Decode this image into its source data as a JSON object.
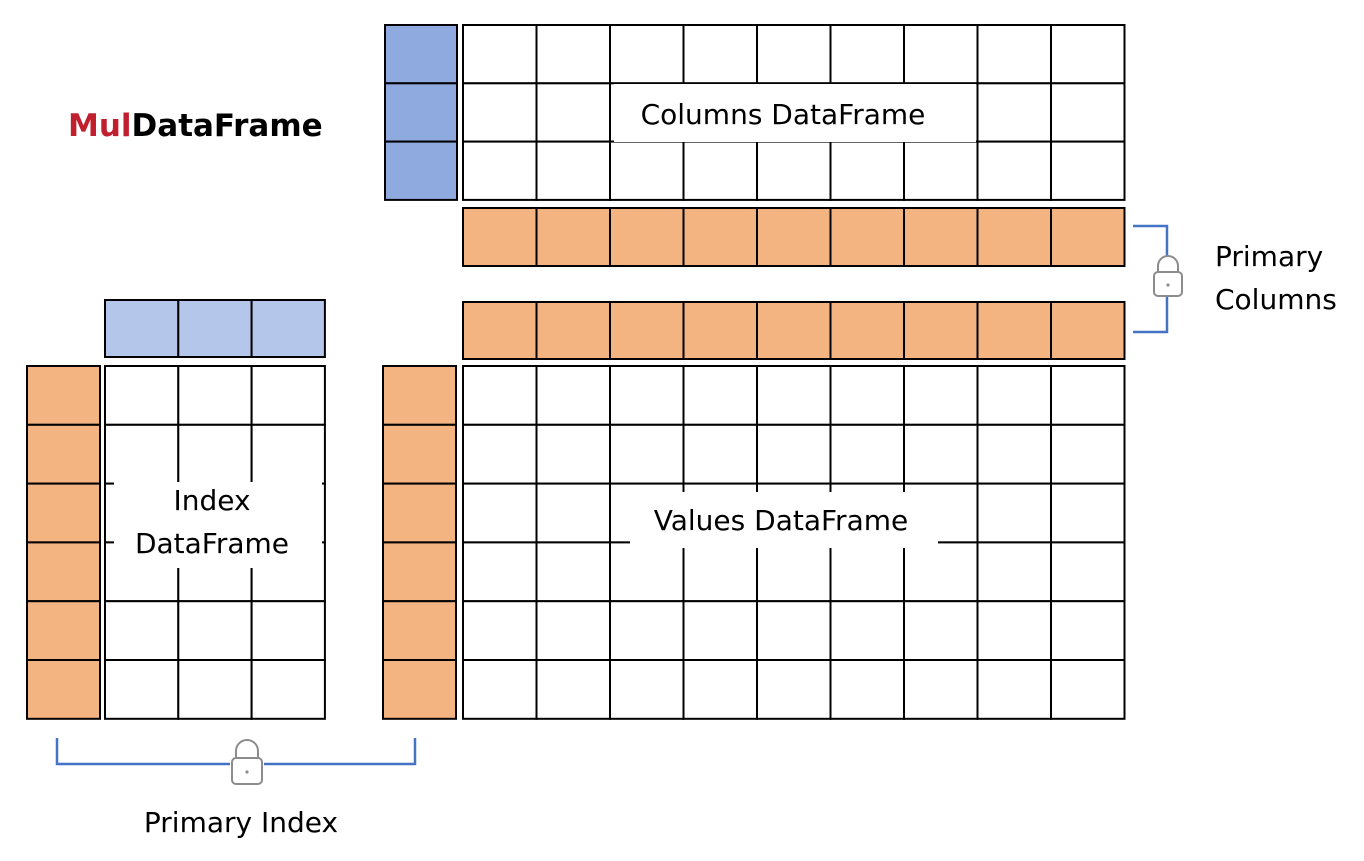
{
  "title": {
    "highlight": "Mul",
    "rest": "DataFrame",
    "highlight_color": "#c0202e",
    "rest_color": "#000000"
  },
  "labels": {
    "columns_df": "Columns DataFrame",
    "values_df": "Values DataFrame",
    "index_df_line1": "Index",
    "index_df_line2": "DataFrame",
    "primary_columns_line1": "Primary",
    "primary_columns_line2": "Columns",
    "primary_index": "Primary Index"
  },
  "colors": {
    "orange": "#f4b482",
    "blue_dark": "#8eaadf",
    "blue_light": "#b4c6e9",
    "bracket": "#4472c4",
    "lock": "#8c8c8c",
    "grid_line": "#000000"
  },
  "icons": [
    "lock-icon-columns",
    "lock-icon-index"
  ]
}
